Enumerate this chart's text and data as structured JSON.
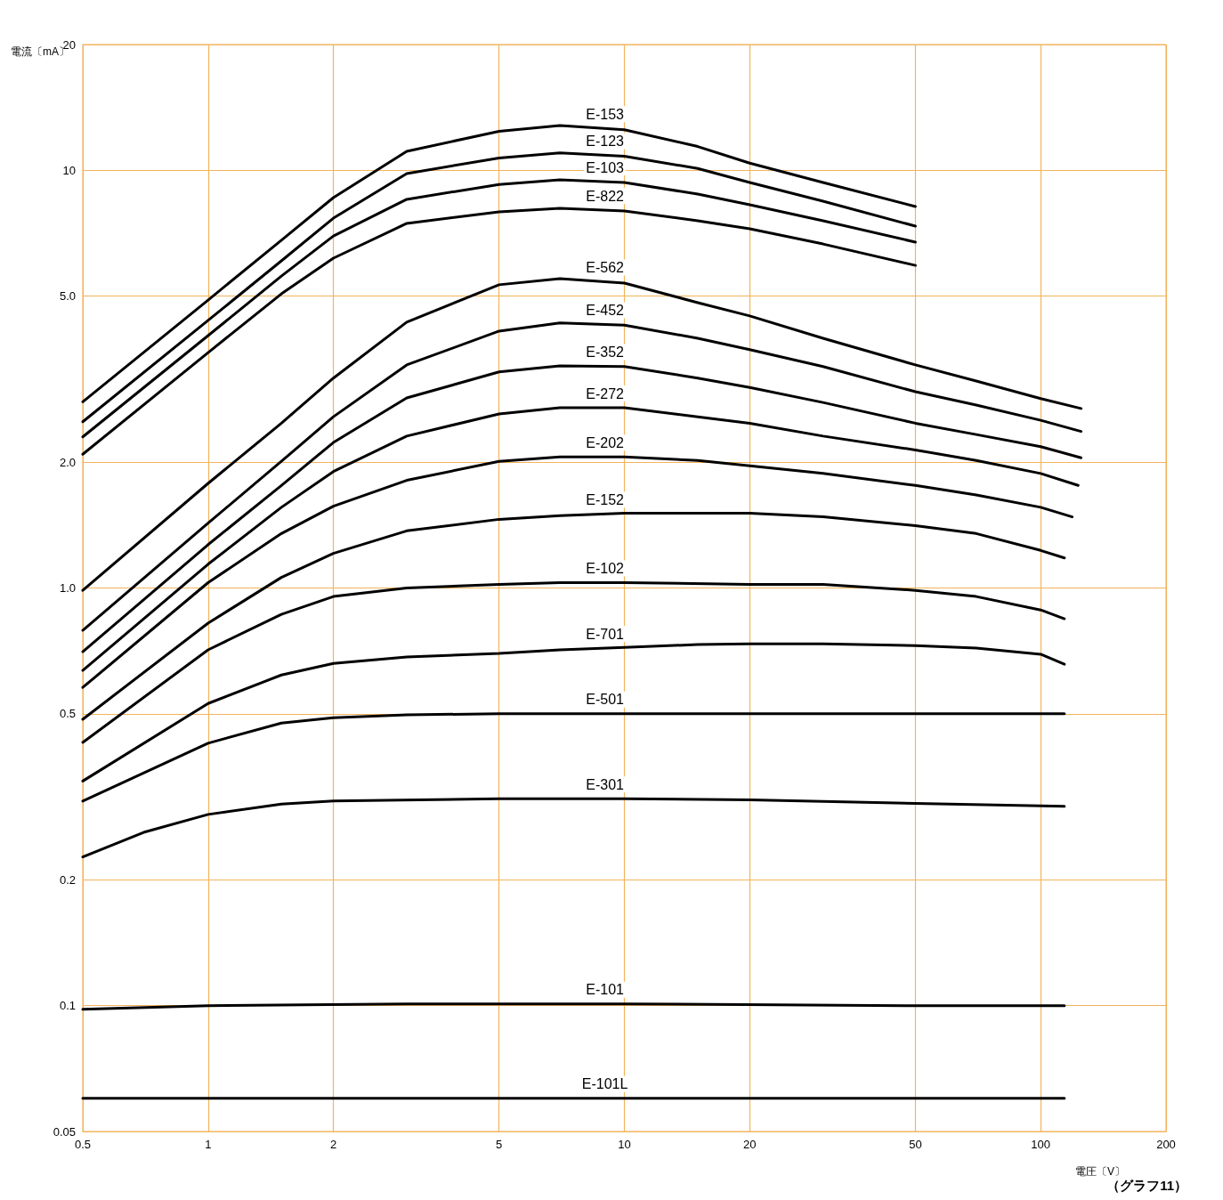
{
  "chart_data": {
    "type": "line",
    "xlabel": "電圧〔V〕",
    "ylabel": "電流〔mA〕",
    "annotations": [
      "（グラフ11）"
    ],
    "log": "xy",
    "grid": true,
    "legend": false,
    "marker": "none",
    "line_style": "solid",
    "xlim": [
      0.5,
      200
    ],
    "xticks": [
      0.5,
      1,
      2,
      5,
      10,
      20,
      50,
      100,
      200
    ],
    "ylim": [
      0.05,
      20
    ],
    "yticks": [
      0.05,
      0.1,
      0.2,
      0.5,
      {
        "value": 1,
        "label": "1.0"
      },
      {
        "value": 2,
        "label": "2.0"
      },
      {
        "value": 5,
        "label": "5.0"
      },
      10,
      20
    ],
    "series": [
      {
        "name": "E-153",
        "color": "#000000",
        "x": [
          0.5,
          1,
          1.5,
          2,
          3,
          5,
          7,
          10,
          15,
          20,
          30,
          50
        ],
        "values": [
          2.79,
          4.89,
          6.8,
          8.6,
          11.1,
          12.4,
          12.8,
          12.5,
          11.4,
          10.4,
          9.35,
          8.19
        ]
      },
      {
        "name": "E-123",
        "color": "#000000",
        "x": [
          0.5,
          1,
          1.5,
          2,
          3,
          5,
          7,
          10,
          15,
          20,
          30,
          50
        ],
        "values": [
          2.5,
          4.37,
          6.07,
          7.68,
          9.82,
          10.7,
          11.0,
          10.8,
          10.1,
          9.35,
          8.43,
          7.35
        ]
      },
      {
        "name": "E-103",
        "color": "#000000",
        "x": [
          0.5,
          1,
          1.5,
          2,
          3,
          5,
          7,
          10,
          15,
          20,
          30,
          50
        ],
        "values": [
          2.3,
          4.02,
          5.58,
          6.96,
          8.52,
          9.25,
          9.49,
          9.35,
          8.77,
          8.27,
          7.57,
          6.73
        ]
      },
      {
        "name": "E-822",
        "color": "#000000",
        "x": [
          0.5,
          1,
          1.5,
          2,
          3,
          5,
          7,
          10,
          15,
          20,
          30,
          50
        ],
        "values": [
          2.09,
          3.66,
          5.06,
          6.16,
          7.46,
          7.95,
          8.11,
          7.99,
          7.57,
          7.24,
          6.66,
          5.92
        ]
      },
      {
        "name": "E-562",
        "color": "#000000",
        "x": [
          0.5,
          1,
          1.5,
          2,
          3,
          5,
          7,
          10,
          15,
          20,
          30,
          50,
          70,
          100,
          125
        ],
        "values": [
          0.987,
          1.78,
          2.48,
          3.18,
          4.33,
          5.32,
          5.5,
          5.37,
          4.82,
          4.48,
          3.96,
          3.42,
          3.13,
          2.84,
          2.69
        ]
      },
      {
        "name": "E-452",
        "color": "#000000",
        "x": [
          0.5,
          1,
          1.5,
          2,
          3,
          5,
          7,
          10,
          15,
          20,
          30,
          50,
          70,
          100,
          125
        ],
        "values": [
          0.792,
          1.43,
          2.01,
          2.57,
          3.42,
          4.12,
          4.31,
          4.26,
          3.96,
          3.72,
          3.39,
          2.95,
          2.74,
          2.52,
          2.37
        ]
      },
      {
        "name": "E-352",
        "color": "#000000",
        "x": [
          0.5,
          1,
          1.5,
          2,
          3,
          5,
          7,
          10,
          15,
          20,
          30,
          50,
          70,
          100,
          125
        ],
        "values": [
          0.704,
          1.27,
          1.76,
          2.23,
          2.85,
          3.29,
          3.4,
          3.39,
          3.18,
          3.02,
          2.78,
          2.48,
          2.33,
          2.18,
          2.05
        ]
      },
      {
        "name": "E-272",
        "color": "#000000",
        "x": [
          0.5,
          1,
          1.5,
          2,
          3,
          5,
          7,
          10,
          15,
          20,
          30,
          50,
          70,
          100,
          123
        ],
        "values": [
          0.635,
          1.14,
          1.56,
          1.9,
          2.31,
          2.61,
          2.7,
          2.7,
          2.57,
          2.48,
          2.31,
          2.14,
          2.02,
          1.88,
          1.76
        ]
      },
      {
        "name": "E-202",
        "color": "#000000",
        "x": [
          0.5,
          1,
          1.5,
          2,
          3,
          5,
          7,
          10,
          15,
          20,
          30,
          50,
          70,
          100,
          119
        ],
        "values": [
          0.578,
          1.03,
          1.35,
          1.57,
          1.81,
          2.01,
          2.06,
          2.06,
          2.02,
          1.96,
          1.88,
          1.76,
          1.67,
          1.56,
          1.48
        ]
      },
      {
        "name": "E-152",
        "color": "#000000",
        "x": [
          0.5,
          1,
          1.5,
          2,
          3,
          5,
          7,
          10,
          15,
          20,
          30,
          50,
          70,
          100,
          114
        ],
        "values": [
          0.485,
          0.824,
          1.06,
          1.21,
          1.37,
          1.46,
          1.49,
          1.51,
          1.51,
          1.51,
          1.48,
          1.41,
          1.35,
          1.23,
          1.18
        ]
      },
      {
        "name": "E-102",
        "color": "#000000",
        "x": [
          0.5,
          1,
          1.5,
          2,
          3,
          5,
          7,
          10,
          20,
          30,
          50,
          70,
          100,
          114
        ],
        "values": [
          0.427,
          0.711,
          0.865,
          0.954,
          1.0,
          1.02,
          1.03,
          1.03,
          1.02,
          1.02,
          0.987,
          0.954,
          0.886,
          0.844
        ]
      },
      {
        "name": "E-701",
        "color": "#000000",
        "x": [
          0.5,
          1,
          1.5,
          2,
          3,
          5,
          7,
          10,
          15,
          20,
          30,
          50,
          70,
          100,
          114
        ],
        "values": [
          0.345,
          0.529,
          0.619,
          0.66,
          0.684,
          0.697,
          0.711,
          0.721,
          0.732,
          0.735,
          0.735,
          0.728,
          0.718,
          0.694,
          0.657
        ]
      },
      {
        "name": "E-501",
        "color": "#000000",
        "x": [
          0.5,
          1,
          1.5,
          2,
          3,
          5,
          10,
          50,
          114
        ],
        "values": [
          0.309,
          0.425,
          0.475,
          0.489,
          0.497,
          0.5,
          0.5,
          0.5,
          0.5
        ]
      },
      {
        "name": "E-301",
        "color": "#000000",
        "x": [
          0.5,
          0.7,
          1,
          1.5,
          2,
          5,
          10,
          20,
          50,
          114
        ],
        "values": [
          0.227,
          0.26,
          0.287,
          0.304,
          0.309,
          0.313,
          0.313,
          0.311,
          0.305,
          0.3
        ]
      },
      {
        "name": "E-101",
        "color": "#000000",
        "x": [
          0.5,
          1,
          3,
          10,
          50,
          114
        ],
        "values": [
          0.098,
          0.1,
          0.101,
          0.101,
          0.1,
          0.1
        ]
      },
      {
        "name": "E-101L",
        "color": "#000000",
        "x": [
          0.5,
          10,
          114
        ],
        "values": [
          0.06,
          0.06,
          0.06
        ]
      }
    ]
  }
}
